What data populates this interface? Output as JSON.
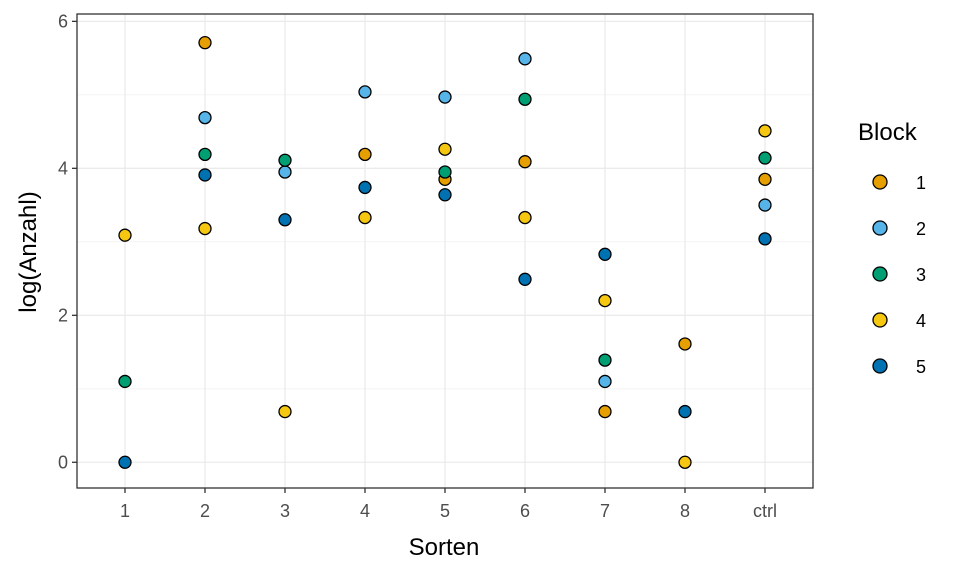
{
  "chart_data": {
    "type": "scatter",
    "xlabel": "Sorten",
    "ylabel": "log(Anzahl)",
    "categories": [
      "1",
      "2",
      "3",
      "4",
      "5",
      "6",
      "7",
      "8",
      "ctrl"
    ],
    "yticks": [
      "0",
      "2",
      "4",
      "6"
    ],
    "ylim": [
      -0.35,
      6.1
    ],
    "grid": true,
    "legend": {
      "title": "Block",
      "placement": "right",
      "entries": [
        "1",
        "2",
        "3",
        "4",
        "5"
      ]
    },
    "series": [
      {
        "name": "1",
        "color": "#E69F00",
        "points": [
          {
            "x": "2",
            "y": 5.71
          },
          {
            "x": "4",
            "y": 4.19
          },
          {
            "x": "5",
            "y": 3.85
          },
          {
            "x": "6",
            "y": 4.09
          },
          {
            "x": "7",
            "y": 0.69
          },
          {
            "x": "8",
            "y": 1.61
          },
          {
            "x": "ctrl",
            "y": 3.85
          }
        ]
      },
      {
        "name": "2",
        "color": "#56B4E9",
        "points": [
          {
            "x": "2",
            "y": 4.69
          },
          {
            "x": "3",
            "y": 3.95
          },
          {
            "x": "4",
            "y": 5.04
          },
          {
            "x": "5",
            "y": 4.97
          },
          {
            "x": "6",
            "y": 5.49
          },
          {
            "x": "7",
            "y": 1.1
          },
          {
            "x": "ctrl",
            "y": 3.5
          }
        ]
      },
      {
        "name": "3",
        "color": "#009E73",
        "points": [
          {
            "x": "1",
            "y": 1.1
          },
          {
            "x": "2",
            "y": 4.19
          },
          {
            "x": "3",
            "y": 4.11
          },
          {
            "x": "5",
            "y": 3.95
          },
          {
            "x": "6",
            "y": 4.94
          },
          {
            "x": "7",
            "y": 1.39
          },
          {
            "x": "ctrl",
            "y": 4.14
          }
        ]
      },
      {
        "name": "4",
        "color": "#F5C710",
        "points": [
          {
            "x": "1",
            "y": 3.09
          },
          {
            "x": "2",
            "y": 3.18
          },
          {
            "x": "3",
            "y": 0.69
          },
          {
            "x": "4",
            "y": 3.33
          },
          {
            "x": "5",
            "y": 4.26
          },
          {
            "x": "6",
            "y": 3.33
          },
          {
            "x": "7",
            "y": 2.2
          },
          {
            "x": "8",
            "y": 0.0
          },
          {
            "x": "ctrl",
            "y": 4.51
          }
        ]
      },
      {
        "name": "5",
        "color": "#0072B2",
        "points": [
          {
            "x": "1",
            "y": 0.0
          },
          {
            "x": "2",
            "y": 3.91
          },
          {
            "x": "3",
            "y": 3.3
          },
          {
            "x": "4",
            "y": 3.74
          },
          {
            "x": "5",
            "y": 3.64
          },
          {
            "x": "6",
            "y": 2.49
          },
          {
            "x": "7",
            "y": 2.83
          },
          {
            "x": "8",
            "y": 0.69
          },
          {
            "x": "ctrl",
            "y": 3.04
          }
        ]
      }
    ]
  }
}
